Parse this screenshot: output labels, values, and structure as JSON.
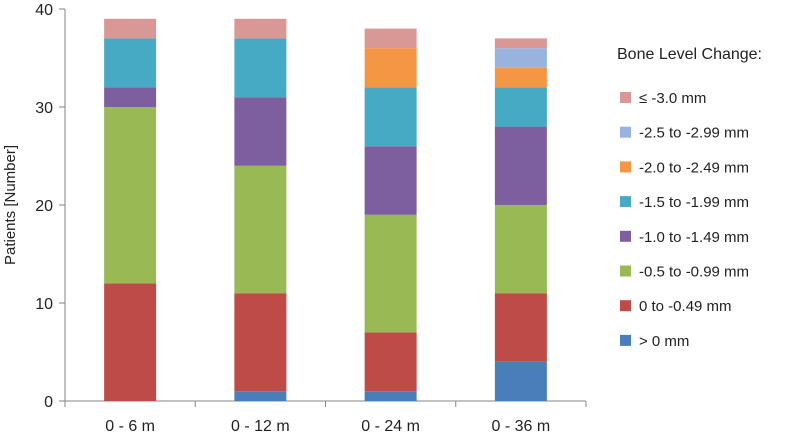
{
  "chart_data": {
    "type": "bar",
    "stacked": true,
    "title": "",
    "xlabel": "",
    "ylabel": "Patients [Number]",
    "ylim": [
      0,
      40
    ],
    "yticks": [
      0,
      10,
      20,
      30,
      40
    ],
    "grid": false,
    "legend_position": "right",
    "legend_title": "Bone Level Change:",
    "categories": [
      "0 - 6 m",
      "0 - 12 m",
      "0 - 24 m",
      "0 - 36 m"
    ],
    "series": [
      {
        "name": "> 0 mm",
        "color": "#4a7ebb",
        "values": [
          0,
          1,
          1,
          4
        ]
      },
      {
        "name": "0 to -0.49 mm",
        "color": "#be4b48",
        "values": [
          12,
          10,
          6,
          7
        ]
      },
      {
        "name": "-0.5 to -0.99 mm",
        "color": "#98b954",
        "values": [
          18,
          13,
          12,
          9
        ]
      },
      {
        "name": "-1.0 to -1.49 mm",
        "color": "#7d5fa0",
        "values": [
          2,
          7,
          7,
          8
        ]
      },
      {
        "name": "-1.5 to -1.99 mm",
        "color": "#46aac5",
        "values": [
          5,
          6,
          6,
          4
        ]
      },
      {
        "name": "-2.0 to -2.49 mm",
        "color": "#f59645",
        "values": [
          0,
          0,
          4,
          2
        ]
      },
      {
        "name": "-2.5 to -2.99 mm",
        "color": "#98b4de",
        "values": [
          0,
          0,
          0,
          2
        ]
      },
      {
        "name": "≤ -3.0 mm",
        "color": "#d99795",
        "values": [
          2,
          2,
          2,
          1
        ]
      }
    ]
  }
}
